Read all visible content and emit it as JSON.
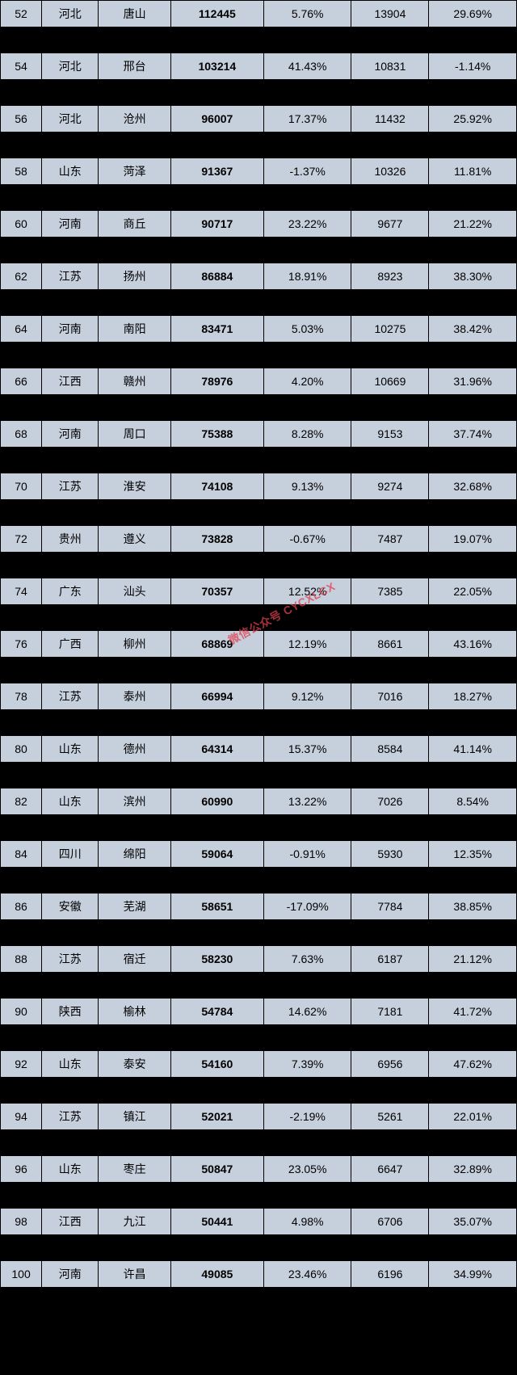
{
  "watermark": "微信公众号 CYCXLCX",
  "styling": {
    "row_bg_visible": "#c6cfdc",
    "row_bg_hidden": "#000000",
    "text_color": "#000000",
    "border_color": "#000000",
    "watermark_color": "#e04050",
    "font_size": 14,
    "col_widths_pct": [
      8,
      11,
      14,
      18,
      17,
      15,
      17
    ]
  },
  "rows": [
    {
      "rank": "52",
      "province": "河北",
      "city": "唐山",
      "value1": "112445",
      "pct1": "5.76%",
      "value2": "13904",
      "pct2": "29.69%"
    },
    {
      "rank": "54",
      "province": "河北",
      "city": "邢台",
      "value1": "103214",
      "pct1": "41.43%",
      "value2": "10831",
      "pct2": "-1.14%"
    },
    {
      "rank": "56",
      "province": "河北",
      "city": "沧州",
      "value1": "96007",
      "pct1": "17.37%",
      "value2": "11432",
      "pct2": "25.92%"
    },
    {
      "rank": "58",
      "province": "山东",
      "city": "菏泽",
      "value1": "91367",
      "pct1": "-1.37%",
      "value2": "10326",
      "pct2": "11.81%"
    },
    {
      "rank": "60",
      "province": "河南",
      "city": "商丘",
      "value1": "90717",
      "pct1": "23.22%",
      "value2": "9677",
      "pct2": "21.22%"
    },
    {
      "rank": "62",
      "province": "江苏",
      "city": "扬州",
      "value1": "86884",
      "pct1": "18.91%",
      "value2": "8923",
      "pct2": "38.30%"
    },
    {
      "rank": "64",
      "province": "河南",
      "city": "南阳",
      "value1": "83471",
      "pct1": "5.03%",
      "value2": "10275",
      "pct2": "38.42%"
    },
    {
      "rank": "66",
      "province": "江西",
      "city": "赣州",
      "value1": "78976",
      "pct1": "4.20%",
      "value2": "10669",
      "pct2": "31.96%"
    },
    {
      "rank": "68",
      "province": "河南",
      "city": "周口",
      "value1": "75388",
      "pct1": "8.28%",
      "value2": "9153",
      "pct2": "37.74%"
    },
    {
      "rank": "70",
      "province": "江苏",
      "city": "淮安",
      "value1": "74108",
      "pct1": "9.13%",
      "value2": "9274",
      "pct2": "32.68%"
    },
    {
      "rank": "72",
      "province": "贵州",
      "city": "遵义",
      "value1": "73828",
      "pct1": "-0.67%",
      "value2": "7487",
      "pct2": "19.07%"
    },
    {
      "rank": "74",
      "province": "广东",
      "city": "汕头",
      "value1": "70357",
      "pct1": "12.52%",
      "value2": "7385",
      "pct2": "22.05%"
    },
    {
      "rank": "76",
      "province": "广西",
      "city": "柳州",
      "value1": "68869",
      "pct1": "12.19%",
      "value2": "8661",
      "pct2": "43.16%"
    },
    {
      "rank": "78",
      "province": "江苏",
      "city": "泰州",
      "value1": "66994",
      "pct1": "9.12%",
      "value2": "7016",
      "pct2": "18.27%"
    },
    {
      "rank": "80",
      "province": "山东",
      "city": "德州",
      "value1": "64314",
      "pct1": "15.37%",
      "value2": "8584",
      "pct2": "41.14%"
    },
    {
      "rank": "82",
      "province": "山东",
      "city": "滨州",
      "value1": "60990",
      "pct1": "13.22%",
      "value2": "7026",
      "pct2": "8.54%"
    },
    {
      "rank": "84",
      "province": "四川",
      "city": "绵阳",
      "value1": "59064",
      "pct1": "-0.91%",
      "value2": "5930",
      "pct2": "12.35%"
    },
    {
      "rank": "86",
      "province": "安徽",
      "city": "芜湖",
      "value1": "58651",
      "pct1": "-17.09%",
      "value2": "7784",
      "pct2": "38.85%"
    },
    {
      "rank": "88",
      "province": "江苏",
      "city": "宿迁",
      "value1": "58230",
      "pct1": "7.63%",
      "value2": "6187",
      "pct2": "21.12%"
    },
    {
      "rank": "90",
      "province": "陕西",
      "city": "榆林",
      "value1": "54784",
      "pct1": "14.62%",
      "value2": "7181",
      "pct2": "41.72%"
    },
    {
      "rank": "92",
      "province": "山东",
      "city": "泰安",
      "value1": "54160",
      "pct1": "7.39%",
      "value2": "6956",
      "pct2": "47.62%"
    },
    {
      "rank": "94",
      "province": "江苏",
      "city": "镇江",
      "value1": "52021",
      "pct1": "-2.19%",
      "value2": "5261",
      "pct2": "22.01%"
    },
    {
      "rank": "96",
      "province": "山东",
      "city": "枣庄",
      "value1": "50847",
      "pct1": "23.05%",
      "value2": "6647",
      "pct2": "32.89%"
    },
    {
      "rank": "98",
      "province": "江西",
      "city": "九江",
      "value1": "50441",
      "pct1": "4.98%",
      "value2": "6706",
      "pct2": "35.07%"
    },
    {
      "rank": "100",
      "province": "河南",
      "city": "许昌",
      "value1": "49085",
      "pct1": "23.46%",
      "value2": "6196",
      "pct2": "34.99%"
    }
  ]
}
